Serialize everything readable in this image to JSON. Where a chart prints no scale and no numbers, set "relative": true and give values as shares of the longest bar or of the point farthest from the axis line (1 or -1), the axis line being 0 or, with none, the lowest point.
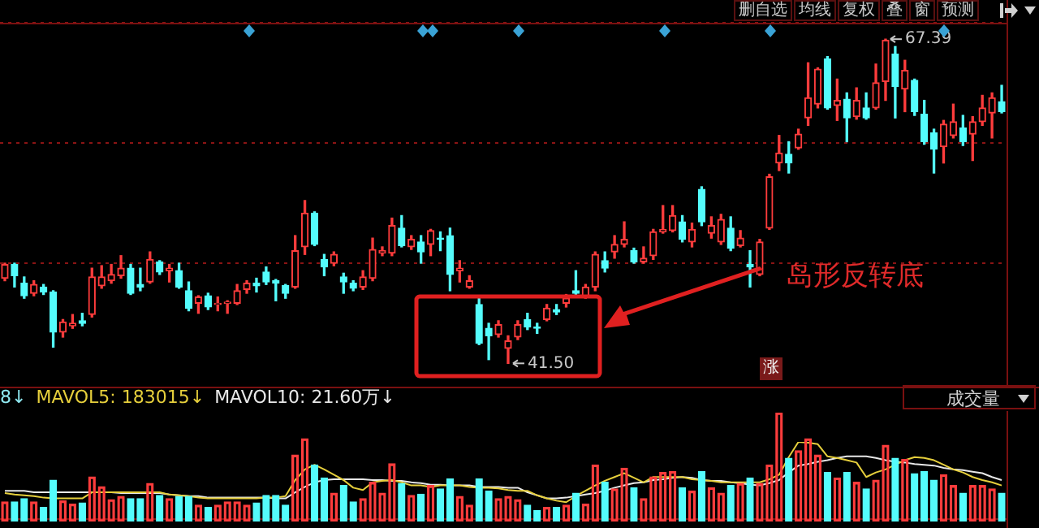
{
  "chart_data": [
    {
      "type": "candlestick",
      "categories": [
        null,
        null,
        null,
        null,
        null,
        null,
        null,
        null,
        null,
        null,
        null,
        null,
        null,
        null,
        null,
        null,
        null,
        null,
        null,
        null,
        null,
        null,
        null,
        null,
        null,
        null,
        null,
        null,
        null,
        null,
        null,
        null,
        null,
        null,
        null,
        null,
        null,
        null,
        null,
        null,
        null,
        null,
        null,
        null,
        null,
        null,
        null,
        null,
        null,
        null,
        null,
        null,
        null,
        null,
        null,
        null,
        null,
        null,
        null,
        null,
        null,
        null,
        null,
        null,
        null,
        null,
        null,
        null,
        null,
        null,
        null,
        null,
        null,
        null,
        null,
        null,
        null,
        null,
        null,
        null,
        null,
        null,
        null,
        null,
        null,
        null,
        null,
        null,
        null,
        null,
        null,
        null,
        null,
        null,
        null,
        null,
        null,
        null,
        null,
        null,
        null,
        null,
        null,
        null
      ],
      "ohlc": [
        [
          48.3,
          49.5,
          48.1,
          49.4
        ],
        [
          49.4,
          49.5,
          47.6,
          48.5
        ],
        [
          47.9,
          48.4,
          46.7,
          46.9
        ],
        [
          47.1,
          48.1,
          46.9,
          47.8
        ],
        [
          47.6,
          47.8,
          47.0,
          47.2
        ],
        [
          47.2,
          47.3,
          42.8,
          44.0
        ],
        [
          44.0,
          45.0,
          43.6,
          44.8
        ],
        [
          44.5,
          45.4,
          44.3,
          44.7
        ],
        [
          44.9,
          45.5,
          44.5,
          44.7
        ],
        [
          45.4,
          49.1,
          45.2,
          48.4
        ],
        [
          47.7,
          49.3,
          47.5,
          48.4
        ],
        [
          48.1,
          49.4,
          47.9,
          48.6
        ],
        [
          48.5,
          50.1,
          48.3,
          49.1
        ],
        [
          49.1,
          49.4,
          47.0,
          47.1
        ],
        [
          47.8,
          49.1,
          47.3,
          47.6
        ],
        [
          48.0,
          50.4,
          47.9,
          49.8
        ],
        [
          49.6,
          49.7,
          48.6,
          48.8
        ],
        [
          48.9,
          49.4,
          48.0,
          49.1
        ],
        [
          48.9,
          49.5,
          47.5,
          47.6
        ],
        [
          47.3,
          48.0,
          45.7,
          45.9
        ],
        [
          46.3,
          46.9,
          45.5,
          46.8
        ],
        [
          46.9,
          47.1,
          45.8,
          46.0
        ],
        [
          46.2,
          46.8,
          45.7,
          46.3
        ],
        [
          46.3,
          46.5,
          45.5,
          46.4
        ],
        [
          46.3,
          47.8,
          46.2,
          47.3
        ],
        [
          47.4,
          48.1,
          47.1,
          47.9
        ],
        [
          47.9,
          48.3,
          47.2,
          47.7
        ],
        [
          48.8,
          49.2,
          47.8,
          48.0
        ],
        [
          48.1,
          48.2,
          46.5,
          47.9
        ],
        [
          47.7,
          47.8,
          46.7,
          47.1
        ],
        [
          47.6,
          51.7,
          47.5,
          50.5
        ],
        [
          50.8,
          54.5,
          50.2,
          53.5
        ],
        [
          53.5,
          53.6,
          50.9,
          51.0
        ],
        [
          49.8,
          50.2,
          48.5,
          49.2
        ],
        [
          49.5,
          50.4,
          49.3,
          50.2
        ],
        [
          48.4,
          48.7,
          47.1,
          48.0
        ],
        [
          47.9,
          48.1,
          47.3,
          47.5
        ],
        [
          47.6,
          48.9,
          47.4,
          48.4
        ],
        [
          48.3,
          51.5,
          48.1,
          50.6
        ],
        [
          50.3,
          50.8,
          50.1,
          50.5
        ],
        [
          50.3,
          53.1,
          50.1,
          52.5
        ],
        [
          52.3,
          53.3,
          50.8,
          50.9
        ],
        [
          50.8,
          51.7,
          50.6,
          51.4
        ],
        [
          51.2,
          51.7,
          49.5,
          50.4
        ],
        [
          51.0,
          52.2,
          50.1,
          52.1
        ],
        [
          51.5,
          52.0,
          50.5,
          51.4
        ],
        [
          51.7,
          52.3,
          47.3,
          48.6
        ],
        [
          48.9,
          49.7,
          48.0,
          49.1
        ],
        [
          47.6,
          48.5,
          47.5,
          48.1
        ],
        [
          46.2,
          46.8,
          43.0,
          43.1
        ],
        [
          44.3,
          44.7,
          41.8,
          43.7
        ],
        [
          43.8,
          44.9,
          43.6,
          44.6
        ],
        [
          42.7,
          43.7,
          41.5,
          43.3
        ],
        [
          43.6,
          44.9,
          43.4,
          44.6
        ],
        [
          45.0,
          45.5,
          44.2,
          44.4
        ],
        [
          44.4,
          44.7,
          43.9,
          44.3
        ],
        [
          45.0,
          46.2,
          44.9,
          45.9
        ],
        [
          45.8,
          46.2,
          45.4,
          45.6
        ],
        [
          46.3,
          47.0,
          46.0,
          46.7
        ],
        [
          47.3,
          48.9,
          47.0,
          47.1
        ],
        [
          46.8,
          47.8,
          46.7,
          47.6
        ],
        [
          47.6,
          50.4,
          47.3,
          50.2
        ],
        [
          49.7,
          50.4,
          48.8,
          49.1
        ],
        [
          50.4,
          51.7,
          49.9,
          51.0
        ],
        [
          51.0,
          52.8,
          50.8,
          51.4
        ],
        [
          50.5,
          50.7,
          49.5,
          49.6
        ],
        [
          49.6,
          50.8,
          49.5,
          49.9
        ],
        [
          50.1,
          52.2,
          49.8,
          52.0
        ],
        [
          52.0,
          54.1,
          51.9,
          52.2
        ],
        [
          52.1,
          54.1,
          52.0,
          53.3
        ],
        [
          52.8,
          53.3,
          51.2,
          51.4
        ],
        [
          51.2,
          52.7,
          50.8,
          52.2
        ],
        [
          55.4,
          55.6,
          52.5,
          52.8
        ],
        [
          51.9,
          53.2,
          51.5,
          52.5
        ],
        [
          51.2,
          53.4,
          51.0,
          53.0
        ],
        [
          52.3,
          53.2,
          50.5,
          50.7
        ],
        [
          50.9,
          52.1,
          50.8,
          51.5
        ],
        [
          49.4,
          50.5,
          47.6,
          49.2
        ],
        [
          48.6,
          51.4,
          48.5,
          51.2
        ],
        [
          52.3,
          56.6,
          52.2,
          56.4
        ],
        [
          57.5,
          59.7,
          56.9,
          58.3
        ],
        [
          58.2,
          59.2,
          56.7,
          57.5
        ],
        [
          58.7,
          60.2,
          58.6,
          59.8
        ],
        [
          61.1,
          65.5,
          60.5,
          62.7
        ],
        [
          62.2,
          65.1,
          61.9,
          65.0
        ],
        [
          65.8,
          66.0,
          61.8,
          61.9
        ],
        [
          62.1,
          64.2,
          60.9,
          62.5
        ],
        [
          62.6,
          63.1,
          59.2,
          61.1
        ],
        [
          61.2,
          63.5,
          61.0,
          62.5
        ],
        [
          61.9,
          63.1,
          61.0,
          61.1
        ],
        [
          61.9,
          65.4,
          61.8,
          63.9
        ],
        [
          64.0,
          67.39,
          62.5,
          67.3
        ],
        [
          66.2,
          66.8,
          61.1,
          63.6
        ],
        [
          63.4,
          65.7,
          61.6,
          64.9
        ],
        [
          64.1,
          64.2,
          61.3,
          61.6
        ],
        [
          61.4,
          62.5,
          59.0,
          59.2
        ],
        [
          59.9,
          60.2,
          56.7,
          58.6
        ],
        [
          58.8,
          60.9,
          57.5,
          60.6
        ],
        [
          59.7,
          62.2,
          59.5,
          60.8
        ],
        [
          60.3,
          61.3,
          58.9,
          59.2
        ],
        [
          59.8,
          61.2,
          57.7,
          60.8
        ],
        [
          60.8,
          62.9,
          60.5,
          61.9
        ],
        [
          61.5,
          63.1,
          59.5,
          62.7
        ],
        [
          62.4,
          63.7,
          61.5,
          61.6
        ]
      ],
      "colors": [
        "#ff3c3c",
        "#54fcfc",
        "#54fcfc",
        "#ff3c3c",
        "#54fcfc",
        "#54fcfc",
        "#ff3c3c",
        "#ff3c3c",
        "#54fcfc",
        "#ff3c3c",
        "#ff3c3c",
        "#ff3c3c",
        "#ff3c3c",
        "#54fcfc",
        "#54fcfc",
        "#ff3c3c",
        "#54fcfc",
        "#ff3c3c",
        "#54fcfc",
        "#54fcfc",
        "#ff3c3c",
        "#54fcfc",
        "#ff3c3c",
        "#ff3c3c",
        "#ff3c3c",
        "#ff3c3c",
        "#54fcfc",
        "#54fcfc",
        "#54fcfc",
        "#54fcfc",
        "#ff3c3c",
        "#ff3c3c",
        "#54fcfc",
        "#54fcfc",
        "#ff3c3c",
        "#54fcfc",
        "#54fcfc",
        "#ff3c3c",
        "#ff3c3c",
        "#ff3c3c",
        "#ff3c3c",
        "#54fcfc",
        "#ff3c3c",
        "#54fcfc",
        "#ff3c3c",
        "#54fcfc",
        "#54fcfc",
        "#ff3c3c",
        "#ff3c3c",
        "#54fcfc",
        "#54fcfc",
        "#ff3c3c",
        "#ff3c3c",
        "#ff3c3c",
        "#54fcfc",
        "#54fcfc",
        "#ff3c3c",
        "#54fcfc",
        "#ff3c3c",
        "#54fcfc",
        "#ff3c3c",
        "#ff3c3c",
        "#54fcfc",
        "#ff3c3c",
        "#ff3c3c",
        "#54fcfc",
        "#ff3c3c",
        "#ff3c3c",
        "#ff3c3c",
        "#ff3c3c",
        "#54fcfc",
        "#ff3c3c",
        "#54fcfc",
        "#ff3c3c",
        "#ff3c3c",
        "#54fcfc",
        "#ff3c3c",
        "#54fcfc",
        "#ff3c3c",
        "#ff3c3c",
        "#ff3c3c",
        "#54fcfc",
        "#ff3c3c",
        "#ff3c3c",
        "#ff3c3c",
        "#54fcfc",
        "#ff3c3c",
        "#54fcfc",
        "#ff3c3c",
        "#54fcfc",
        "#ff3c3c",
        "#ff3c3c",
        "#54fcfc",
        "#ff3c3c",
        "#54fcfc",
        "#54fcfc",
        "#54fcfc",
        "#ff3c3c",
        "#ff3c3c",
        "#54fcfc",
        "#ff3c3c",
        "#ff3c3c",
        "#ff3c3c",
        "#54fcfc"
      ],
      "ylim": [
        39.9,
        68.7
      ],
      "yticks": [
        {
          "value": 49.5,
          "label": null
        },
        {
          "value": 59.1,
          "label": null
        },
        {
          "value": 68.7,
          "label": null
        }
      ],
      "grid": "y",
      "tick_labels": false,
      "annotations": [
        "删自选",
        "均线",
        "复权",
        "叠",
        "窗",
        "预测",
        "67.39",
        "41.50",
        "岛形反转底",
        "涨"
      ]
    },
    {
      "type": "bar",
      "relative": true,
      "categories": [
        null,
        null,
        null,
        null,
        null,
        null,
        null,
        null,
        null,
        null,
        null,
        null,
        null,
        null,
        null,
        null,
        null,
        null,
        null,
        null,
        null,
        null,
        null,
        null,
        null,
        null,
        null,
        null,
        null,
        null,
        null,
        null,
        null,
        null,
        null,
        null,
        null,
        null,
        null,
        null,
        null,
        null,
        null,
        null,
        null,
        null,
        null,
        null,
        null,
        null,
        null,
        null,
        null,
        null,
        null,
        null,
        null,
        null,
        null,
        null,
        null,
        null,
        null,
        null,
        null,
        null,
        null,
        null,
        null,
        null,
        null,
        null,
        null,
        null,
        null,
        null,
        null,
        null,
        null,
        null,
        null,
        null,
        null,
        null,
        null,
        null,
        null,
        null,
        null,
        null,
        null,
        null,
        null,
        null,
        null,
        null,
        null,
        null,
        null,
        null,
        null,
        null,
        null,
        null
      ],
      "colors": [
        "#ff3c3c",
        "#54fcfc",
        "#54fcfc",
        "#ff3c3c",
        "#54fcfc",
        "#54fcfc",
        "#ff3c3c",
        "#ff3c3c",
        "#54fcfc",
        "#ff3c3c",
        "#ff3c3c",
        "#ff3c3c",
        "#ff3c3c",
        "#54fcfc",
        "#54fcfc",
        "#ff3c3c",
        "#54fcfc",
        "#ff3c3c",
        "#54fcfc",
        "#54fcfc",
        "#ff3c3c",
        "#54fcfc",
        "#ff3c3c",
        "#ff3c3c",
        "#ff3c3c",
        "#ff3c3c",
        "#54fcfc",
        "#54fcfc",
        "#54fcfc",
        "#54fcfc",
        "#ff3c3c",
        "#ff3c3c",
        "#54fcfc",
        "#54fcfc",
        "#ff3c3c",
        "#54fcfc",
        "#54fcfc",
        "#ff3c3c",
        "#ff3c3c",
        "#ff3c3c",
        "#ff3c3c",
        "#54fcfc",
        "#ff3c3c",
        "#54fcfc",
        "#ff3c3c",
        "#54fcfc",
        "#54fcfc",
        "#ff3c3c",
        "#ff3c3c",
        "#54fcfc",
        "#54fcfc",
        "#ff3c3c",
        "#ff3c3c",
        "#ff3c3c",
        "#54fcfc",
        "#54fcfc",
        "#ff3c3c",
        "#54fcfc",
        "#ff3c3c",
        "#54fcfc",
        "#ff3c3c",
        "#ff3c3c",
        "#54fcfc",
        "#ff3c3c",
        "#ff3c3c",
        "#54fcfc",
        "#ff3c3c",
        "#ff3c3c",
        "#ff3c3c",
        "#ff3c3c",
        "#54fcfc",
        "#ff3c3c",
        "#54fcfc",
        "#ff3c3c",
        "#ff3c3c",
        "#54fcfc",
        "#ff3c3c",
        "#54fcfc",
        "#ff3c3c",
        "#ff3c3c",
        "#ff3c3c",
        "#54fcfc",
        "#ff3c3c",
        "#ff3c3c",
        "#ff3c3c",
        "#54fcfc",
        "#ff3c3c",
        "#54fcfc",
        "#ff3c3c",
        "#54fcfc",
        "#ff3c3c",
        "#ff3c3c",
        "#54fcfc",
        "#ff3c3c",
        "#54fcfc",
        "#54fcfc",
        "#54fcfc",
        "#ff3c3c",
        "#ff3c3c",
        "#54fcfc",
        "#ff3c3c",
        "#ff3c3c",
        "#ff3c3c",
        "#54fcfc"
      ],
      "values": [
        0.18,
        0.18,
        0.21,
        0.18,
        0.13,
        0.38,
        0.19,
        0.16,
        0.17,
        0.41,
        0.32,
        0.2,
        0.23,
        0.21,
        0.21,
        0.35,
        0.24,
        0.21,
        0.23,
        0.23,
        0.15,
        0.13,
        0.15,
        0.18,
        0.18,
        0.15,
        0.17,
        0.24,
        0.24,
        0.15,
        0.61,
        0.76,
        0.52,
        0.4,
        0.26,
        0.33,
        0.18,
        0.21,
        0.36,
        0.26,
        0.53,
        0.35,
        0.24,
        0.25,
        0.33,
        0.3,
        0.39,
        0.23,
        0.15,
        0.39,
        0.28,
        0.21,
        0.23,
        0.2,
        0.15,
        0.1,
        0.13,
        0.13,
        0.15,
        0.26,
        0.16,
        0.52,
        0.36,
        0.3,
        0.49,
        0.31,
        0.21,
        0.41,
        0.45,
        0.46,
        0.31,
        0.28,
        0.46,
        0.31,
        0.26,
        0.33,
        0.35,
        0.4,
        0.35,
        0.52,
        1,
        0.58,
        0.65,
        0.76,
        0.61,
        0.45,
        0.4,
        0.45,
        0.36,
        0.3,
        0.38,
        0.7,
        0.58,
        0.57,
        0.44,
        0.46,
        0.38,
        0.43,
        0.33,
        0.26,
        0.33,
        0.33,
        0.3,
        0.26
      ],
      "annotations": [
        "成交量"
      ]
    },
    {
      "type": "line",
      "relative": true,
      "marker": "none",
      "categories": [
        null,
        null,
        null,
        null,
        null,
        null,
        null,
        null,
        null,
        null,
        null,
        null,
        null,
        null,
        null,
        null,
        null,
        null,
        null,
        null,
        null,
        null,
        null,
        null,
        null,
        null,
        null,
        null,
        null,
        null,
        null,
        null,
        null,
        null,
        null,
        null,
        null,
        null,
        null,
        null,
        null,
        null,
        null,
        null,
        null,
        null,
        null,
        null,
        null,
        null,
        null,
        null,
        null,
        null,
        null,
        null,
        null,
        null,
        null,
        null,
        null,
        null,
        null,
        null,
        null,
        null,
        null,
        null,
        null,
        null,
        null,
        null,
        null,
        null,
        null,
        null,
        null,
        null,
        null,
        null,
        null,
        null,
        null,
        null,
        null,
        null,
        null,
        null,
        null,
        null,
        null,
        null,
        null,
        null,
        null,
        null,
        null,
        null,
        null,
        null,
        null,
        null,
        null,
        null
      ],
      "series": [
        {
          "color": "#e6cf3c",
          "values": [
            0.33,
            0.31,
            0.3,
            0.29,
            0.27,
            0.26,
            0.26,
            0.26,
            0.26,
            0.34,
            0.34,
            0.34,
            0.34,
            0.34,
            0.34,
            0.34,
            0.34,
            0.31,
            0.3,
            0.29,
            0.27,
            0.26,
            0.26,
            0.26,
            0.26,
            0.26,
            0.26,
            0.27,
            0.27,
            0.29,
            0.5,
            0.64,
            0.7,
            0.64,
            0.57,
            0.5,
            0.4,
            0.37,
            0.47,
            0.49,
            0.5,
            0.47,
            0.43,
            0.43,
            0.41,
            0.43,
            0.43,
            0.43,
            0.41,
            0.4,
            0.4,
            0.39,
            0.37,
            0.36,
            0.36,
            0.3,
            0.26,
            0.23,
            0.21,
            0.29,
            0.36,
            0.43,
            0.49,
            0.54,
            0.59,
            0.53,
            0.47,
            0.54,
            0.54,
            0.54,
            0.54,
            0.51,
            0.5,
            0.49,
            0.47,
            0.47,
            0.47,
            0.47,
            0.47,
            0.51,
            0.57,
            0.8,
            1,
            0.99,
            0.97,
            0.81,
            0.79,
            0.76,
            0.73,
            0.54,
            0.6,
            0.64,
            0.7,
            0.76,
            0.8,
            0.79,
            0.76,
            0.7,
            0.64,
            0.6,
            0.54,
            0.5,
            0.47,
            0.43
          ]
        },
        {
          "color": "#e8e8e8",
          "values": [
            0.36,
            0.36,
            0.36,
            0.34,
            0.34,
            0.34,
            0.34,
            0.34,
            0.34,
            0.34,
            0.34,
            0.34,
            0.33,
            0.33,
            0.33,
            0.33,
            0.33,
            0.31,
            0.3,
            0.29,
            0.29,
            0.27,
            0.27,
            0.27,
            0.27,
            0.27,
            0.27,
            0.27,
            0.26,
            0.26,
            0.34,
            0.41,
            0.47,
            0.5,
            0.51,
            0.51,
            0.51,
            0.51,
            0.5,
            0.5,
            0.49,
            0.49,
            0.47,
            0.46,
            0.44,
            0.44,
            0.43,
            0.43,
            0.43,
            0.41,
            0.41,
            0.41,
            0.4,
            0.4,
            0.34,
            0.3,
            0.26,
            0.26,
            0.27,
            0.29,
            0.31,
            0.33,
            0.36,
            0.4,
            0.43,
            0.46,
            0.47,
            0.5,
            0.51,
            0.53,
            0.54,
            0.53,
            0.5,
            0.49,
            0.49,
            0.47,
            0.46,
            0.44,
            0.43,
            0.46,
            0.5,
            0.6,
            0.69,
            0.71,
            0.74,
            0.76,
            0.79,
            0.81,
            0.81,
            0.81,
            0.79,
            0.76,
            0.74,
            0.73,
            0.71,
            0.7,
            0.69,
            0.66,
            0.64,
            0.63,
            0.61,
            0.59,
            0.54,
            0.5
          ]
        }
      ],
      "annotations": [
        "8↓",
        "MAVOL5: 183015↓",
        "MAVOL10: 21.60万↓"
      ]
    }
  ]
}
